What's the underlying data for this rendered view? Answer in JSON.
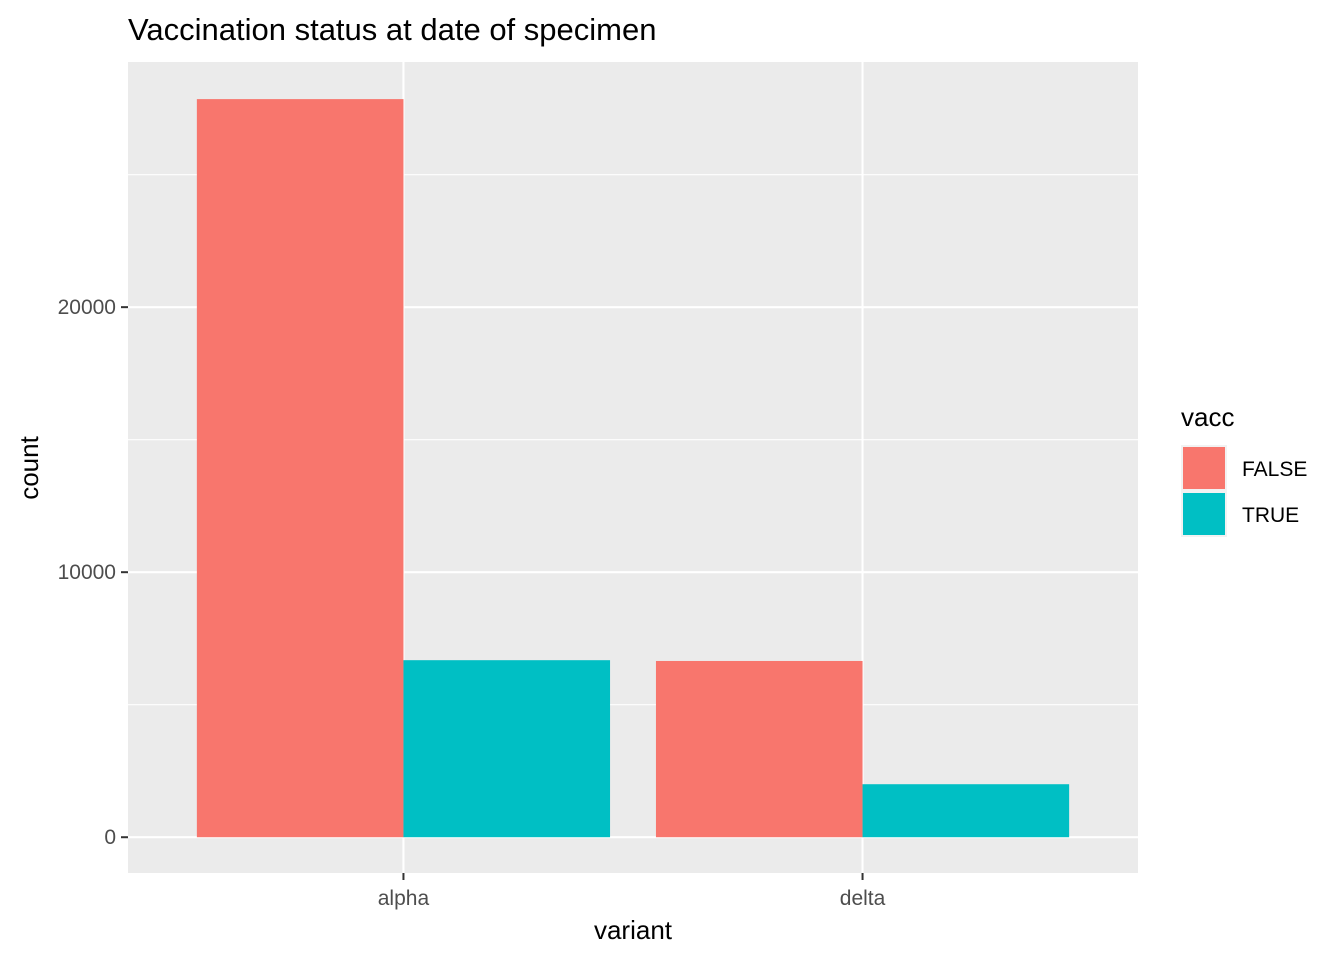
{
  "chart_data": {
    "type": "bar",
    "title": "Vaccination status at date of specimen",
    "xlabel": "variant",
    "ylabel": "count",
    "categories": [
      "alpha",
      "delta"
    ],
    "series": [
      {
        "name": "FALSE",
        "values": [
          27850,
          6650
        ],
        "color": "#F8766D"
      },
      {
        "name": "TRUE",
        "values": [
          6680,
          2000
        ],
        "color": "#00BFC4"
      }
    ],
    "ylim": [
      -1350,
      29250
    ],
    "y_ticks": [
      0,
      10000,
      20000
    ],
    "y_tick_labels": [
      "0",
      "10000",
      "20000"
    ],
    "legend": {
      "title": "vacc",
      "position": "right",
      "entries": [
        "FALSE",
        "TRUE"
      ]
    },
    "grid": true,
    "panel_background": "#EBEBEB",
    "grid_color": "#FFFFFF"
  }
}
